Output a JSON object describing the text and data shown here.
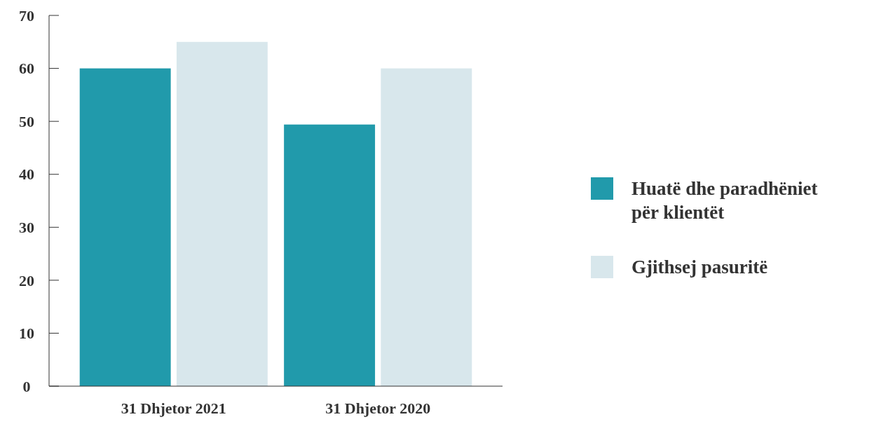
{
  "chart_data": {
    "type": "bar",
    "categories": [
      "31 Dhjetor 2021",
      "31 Dhjetor 2020"
    ],
    "series": [
      {
        "name": "Huatë dhe paradhëniet për klientët",
        "color": "#219aab",
        "values": [
          60,
          49.4
        ]
      },
      {
        "name": "Gjithsej pasuritë",
        "color": "#d8e7ec",
        "values": [
          65,
          60
        ]
      }
    ],
    "ylim": [
      0,
      70
    ],
    "yticks": [
      0,
      10,
      20,
      30,
      40,
      50,
      60,
      70
    ],
    "grid": false,
    "legend": "right"
  }
}
